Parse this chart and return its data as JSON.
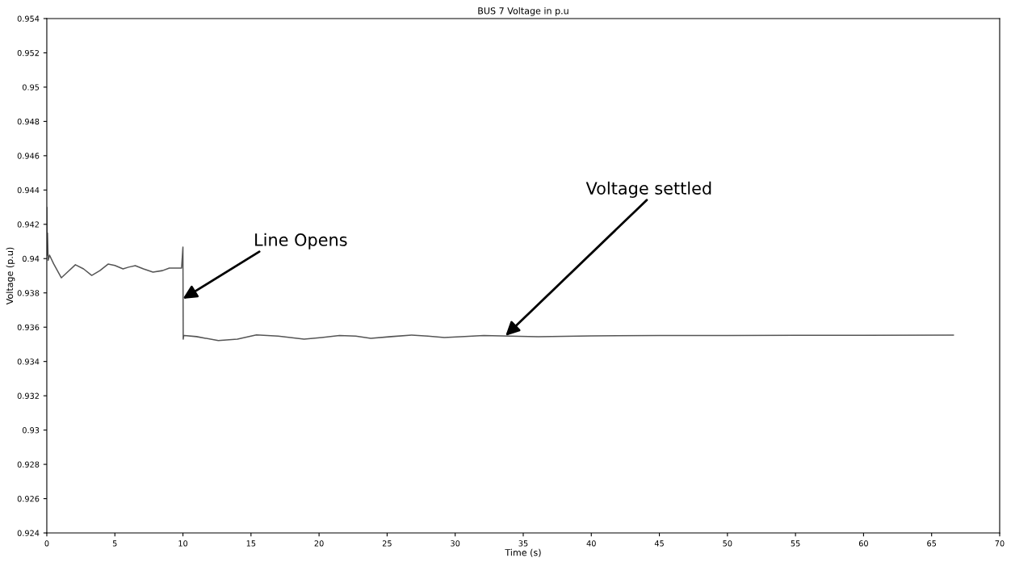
{
  "chart_data": {
    "type": "line",
    "title": "BUS 7 Voltage in p.u",
    "xlabel": "Time (s)",
    "ylabel": "Voltage (p.u)",
    "series": [
      {
        "color": "#555555",
        "x": [
          0,
          0.02,
          0.05,
          0.1,
          0.2,
          0.5,
          1.07,
          1.5,
          2.1,
          2.7,
          3.3,
          3.9,
          4.5,
          5.0,
          5.6,
          6.0,
          6.5,
          7.1,
          7.8,
          8.5,
          9.0,
          9.9,
          10.0,
          10.02,
          10.05,
          10.1,
          11.0,
          12.6,
          14.0,
          15.4,
          17.0,
          18.9,
          20.2,
          21.5,
          22.7,
          23.8,
          25.3,
          26.8,
          28.0,
          29.2,
          30.7,
          32.1,
          34.0,
          36.1,
          40.0,
          45.0,
          50.0,
          55.0,
          60.0,
          66.6
        ],
        "values": [
          0.94298,
          0.9402,
          0.9415,
          0.9399,
          0.9402,
          0.9397,
          0.93888,
          0.9392,
          0.93964,
          0.9394,
          0.93902,
          0.9393,
          0.93968,
          0.9396,
          0.9394,
          0.9395,
          0.93959,
          0.9394,
          0.93921,
          0.9393,
          0.93945,
          0.93945,
          0.94067,
          0.9353,
          0.93549,
          0.93552,
          0.93545,
          0.93522,
          0.9353,
          0.93555,
          0.93548,
          0.9353,
          0.9354,
          0.93552,
          0.93548,
          0.93535,
          0.93545,
          0.93554,
          0.93548,
          0.9354,
          0.93546,
          0.93552,
          0.93548,
          0.93544,
          0.93549,
          0.93552,
          0.93551,
          0.93553,
          0.93553,
          0.93554
        ]
      }
    ],
    "xlim": [
      0,
      70
    ],
    "xticks": [
      0,
      5,
      10,
      15,
      20,
      25,
      30,
      35,
      40,
      45,
      50,
      55,
      60,
      65,
      70
    ],
    "ylim": [
      0.924,
      0.954
    ],
    "yticks": [
      0.924,
      0.926,
      0.928,
      0.93,
      0.932,
      0.934,
      0.936,
      0.938,
      0.94,
      0.942,
      0.944,
      0.946,
      0.948,
      0.95,
      0.952,
      0.954
    ],
    "grid": false,
    "legend": false,
    "annotations": [
      {
        "text": "Line Opens",
        "x": 10.0,
        "y": 0.93766
      },
      {
        "text": "Voltage settled",
        "x": 33.7,
        "y": 0.9355
      }
    ]
  }
}
